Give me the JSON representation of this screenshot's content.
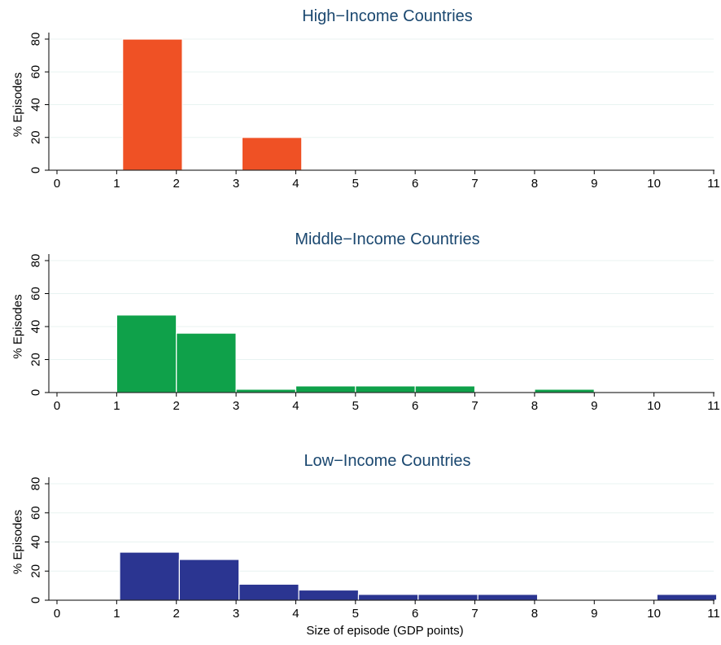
{
  "xlabel": "Size of episode (GDP points)",
  "chart_data": [
    {
      "type": "bar",
      "title": "High−Income Countries",
      "ylabel": "% Episodes",
      "xlabel": "",
      "xlim": [
        0,
        11
      ],
      "ylim": [
        0,
        80
      ],
      "xticks": [
        "0",
        "1",
        "2",
        "3",
        "4",
        "5",
        "6",
        "7",
        "8",
        "9",
        "10",
        "11"
      ],
      "yticks": [
        "0",
        "20",
        "40",
        "60",
        "80"
      ],
      "color": "#ef5125",
      "bins": [
        {
          "start": 1.1,
          "end": 2.1,
          "value": 80
        },
        {
          "start": 3.1,
          "end": 4.1,
          "value": 20
        }
      ]
    },
    {
      "type": "bar",
      "title": "Middle−Income Countries",
      "ylabel": "% Episodes",
      "xlabel": "",
      "xlim": [
        0,
        11
      ],
      "ylim": [
        0,
        80
      ],
      "xticks": [
        "0",
        "1",
        "2",
        "3",
        "4",
        "5",
        "6",
        "7",
        "8",
        "9",
        "10",
        "11"
      ],
      "yticks": [
        "0",
        "20",
        "40",
        "60",
        "80"
      ],
      "color": "#0fa14a",
      "bins": [
        {
          "start": 1,
          "end": 2,
          "value": 47
        },
        {
          "start": 2,
          "end": 3,
          "value": 36
        },
        {
          "start": 3,
          "end": 4,
          "value": 2
        },
        {
          "start": 4,
          "end": 5,
          "value": 4
        },
        {
          "start": 5,
          "end": 6,
          "value": 4
        },
        {
          "start": 6,
          "end": 7,
          "value": 4
        },
        {
          "start": 8,
          "end": 9,
          "value": 2
        }
      ]
    },
    {
      "type": "bar",
      "title": "Low−Income Countries",
      "ylabel": "% Episodes",
      "xlabel": "Size of episode (GDP points)",
      "xlim": [
        0,
        11
      ],
      "ylim": [
        0,
        80
      ],
      "xticks": [
        "0",
        "1",
        "2",
        "3",
        "4",
        "5",
        "6",
        "7",
        "8",
        "9",
        "10",
        "11"
      ],
      "yticks": [
        "0",
        "20",
        "40",
        "60",
        "80"
      ],
      "color": "#2b3591",
      "bins": [
        {
          "start": 1.05,
          "end": 2.05,
          "value": 33
        },
        {
          "start": 2.05,
          "end": 3.05,
          "value": 28
        },
        {
          "start": 3.05,
          "end": 4.05,
          "value": 11
        },
        {
          "start": 4.05,
          "end": 5.05,
          "value": 7
        },
        {
          "start": 5.05,
          "end": 6.05,
          "value": 4
        },
        {
          "start": 6.05,
          "end": 7.05,
          "value": 4
        },
        {
          "start": 7.05,
          "end": 8.05,
          "value": 4
        },
        {
          "start": 10.05,
          "end": 11.05,
          "value": 4
        }
      ]
    }
  ]
}
